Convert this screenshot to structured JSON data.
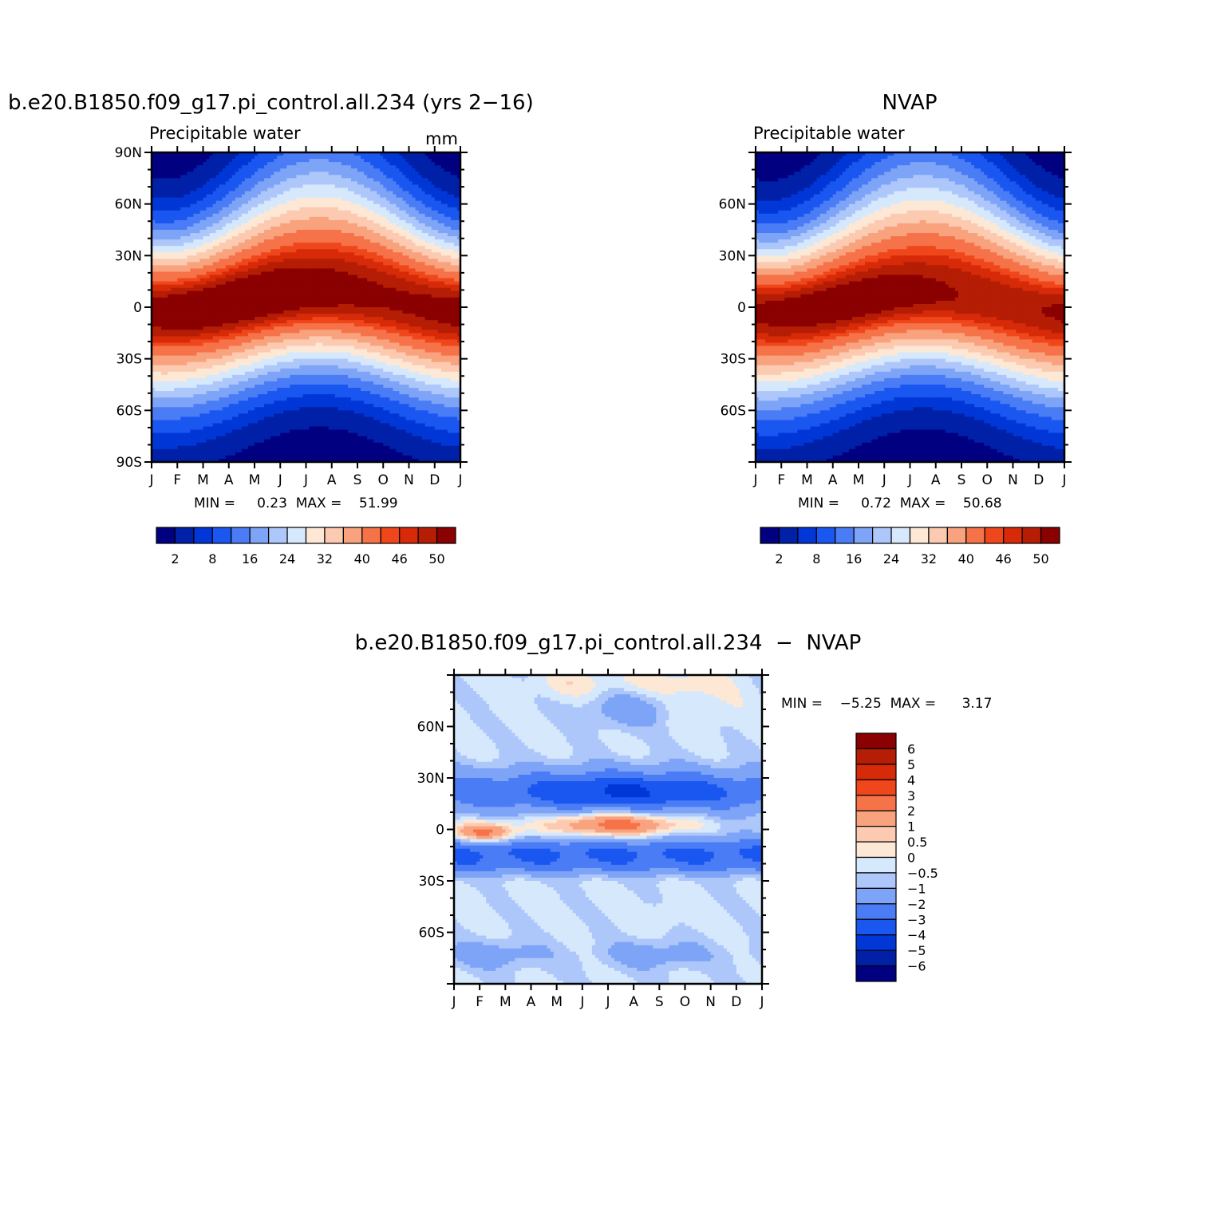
{
  "colors": {
    "precip_levels": [
      "#000080",
      "#0020a8",
      "#0037d6",
      "#1a56f0",
      "#4a7cf5",
      "#7ea4f7",
      "#aec7fb",
      "#d6e8fc",
      "#fde8d6",
      "#fccab1",
      "#f9a27e",
      "#f67248",
      "#f0461c",
      "#d62a08",
      "#b51d05",
      "#8b0000"
    ],
    "diff_levels": [
      "#000080",
      "#0020a8",
      "#0037d6",
      "#1a56f0",
      "#4a7cf5",
      "#7ea4f7",
      "#aec7fb",
      "#d6e8fc",
      "#fde8d6",
      "#fccab1",
      "#f9a27e",
      "#f67248",
      "#f0461c",
      "#d62a08",
      "#b51d05",
      "#8b0000"
    ]
  },
  "panels": [
    {
      "title": "b.e20.B1850.f09_g17.pi_control.all.234 (yrs 2−16)",
      "subtitle": "Precipitable water",
      "units": "mm",
      "stats": "MIN =     0.23  MAX =    51.99",
      "y_tick_labels": [
        "90N",
        "60N",
        "30N",
        "0",
        "30S",
        "60S",
        "90S"
      ],
      "x_tick_labels": [
        "J",
        "F",
        "M",
        "A",
        "M",
        "J",
        "J",
        "A",
        "S",
        "O",
        "N",
        "D",
        "J"
      ],
      "colorbar_labels": [
        "2",
        "8",
        "16",
        "24",
        "32",
        "40",
        "46",
        "50"
      ]
    },
    {
      "title": "NVAP",
      "subtitle": "Precipitable water",
      "stats": "MIN =     0.72  MAX =    50.68",
      "y_tick_labels": [
        "60N",
        "30N",
        "0",
        "30S",
        "60S"
      ],
      "x_tick_labels": [
        "J",
        "F",
        "M",
        "A",
        "M",
        "J",
        "J",
        "A",
        "S",
        "O",
        "N",
        "D",
        "J"
      ],
      "colorbar_labels": [
        "2",
        "8",
        "16",
        "24",
        "32",
        "40",
        "46",
        "50"
      ]
    },
    {
      "title": "b.e20.B1850.f09_g17.pi_control.all.234  −  NVAP",
      "stats": "MIN =    −5.25  MAX =      3.17",
      "y_tick_labels": [
        "60N",
        "30N",
        "0",
        "30S",
        "60S"
      ],
      "x_tick_labels": [
        "J",
        "F",
        "M",
        "A",
        "M",
        "J",
        "J",
        "A",
        "S",
        "O",
        "N",
        "D",
        "J"
      ],
      "colorbar_labels": [
        "6",
        "5",
        "4",
        "3",
        "2",
        "1",
        "0.5",
        "0",
        "−0.5",
        "−1",
        "−2",
        "−3",
        "−4",
        "−5",
        "−6"
      ]
    }
  ],
  "chart_data": [
    {
      "type": "heatmap",
      "title": "b.e20.B1850.f09_g17.pi_control.all.234 (yrs 2−16)",
      "subtitle": "Precipitable water",
      "units": "mm",
      "x": [
        "J",
        "F",
        "M",
        "A",
        "M",
        "J",
        "J",
        "A",
        "S",
        "O",
        "N",
        "D",
        "J"
      ],
      "y_range": [
        -90,
        90
      ],
      "levels": [
        2,
        5,
        8,
        12,
        16,
        20,
        24,
        28,
        32,
        36,
        40,
        44,
        46,
        48,
        50
      ],
      "min": 0.23,
      "max": 51.99,
      "max_band": {
        "lat_jan": -2,
        "lat_jul": 9,
        "peak": 52
      }
    },
    {
      "type": "heatmap",
      "title": "NVAP",
      "subtitle": "Precipitable water",
      "x": [
        "J",
        "F",
        "M",
        "A",
        "M",
        "J",
        "J",
        "A",
        "S",
        "O",
        "N",
        "D",
        "J"
      ],
      "y_range": [
        -90,
        90
      ],
      "levels": [
        2,
        5,
        8,
        12,
        16,
        20,
        24,
        28,
        32,
        36,
        40,
        44,
        46,
        48,
        50
      ],
      "min": 0.72,
      "max": 50.68,
      "max_band": {
        "lat_jan": -3,
        "lat_jul": 8,
        "peak": 51
      }
    },
    {
      "type": "heatmap",
      "title": "b.e20.B1850.f09_g17.pi_control.all.234  −  NVAP",
      "x": [
        "J",
        "F",
        "M",
        "A",
        "M",
        "J",
        "J",
        "A",
        "S",
        "O",
        "N",
        "D",
        "J"
      ],
      "y_range": [
        -90,
        90
      ],
      "levels": [
        -6,
        -5,
        -4,
        -3,
        -2,
        -1,
        -0.5,
        0,
        0.5,
        1,
        2,
        3,
        4,
        5,
        6
      ],
      "min": -5.25,
      "max": 3.17
    }
  ]
}
